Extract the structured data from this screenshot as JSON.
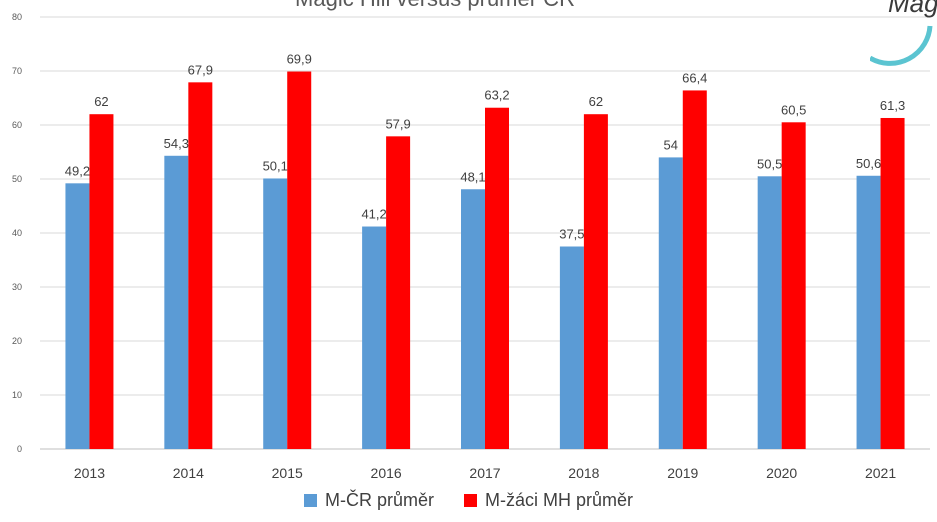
{
  "chart_data": {
    "type": "bar",
    "title": "Magic Hill versus průměr ČR",
    "categories": [
      "2013",
      "2014",
      "2015",
      "2016",
      "2017",
      "2018",
      "2019",
      "2020",
      "2021"
    ],
    "series": [
      {
        "name": "M-ČR průměr",
        "color": "#5b9bd5",
        "values": [
          49.2,
          54.3,
          50.1,
          41.2,
          48.1,
          37.5,
          54,
          50.5,
          50.6
        ],
        "labels": [
          "49,2",
          "54,3",
          "50,1",
          "41,2",
          "48,1",
          "37,5",
          "54",
          "50,5",
          "50,6"
        ]
      },
      {
        "name": "M-žáci MH průměr",
        "color": "#ff0000",
        "values": [
          62,
          67.9,
          69.9,
          57.9,
          63.2,
          62,
          66.4,
          60.5,
          61.3
        ],
        "labels": [
          "62",
          "67,9",
          "69,9",
          "57,9",
          "63,2",
          "62",
          "66,4",
          "60,5",
          "61,3"
        ]
      }
    ],
    "yticks": [
      "0",
      "10",
      "20",
      "30",
      "40",
      "50",
      "60",
      "70",
      "80"
    ],
    "ylim": [
      0,
      80
    ],
    "grid": true,
    "legend": "bottom"
  },
  "logo": {
    "text": "Mag",
    "color": "#5bc4d1"
  }
}
